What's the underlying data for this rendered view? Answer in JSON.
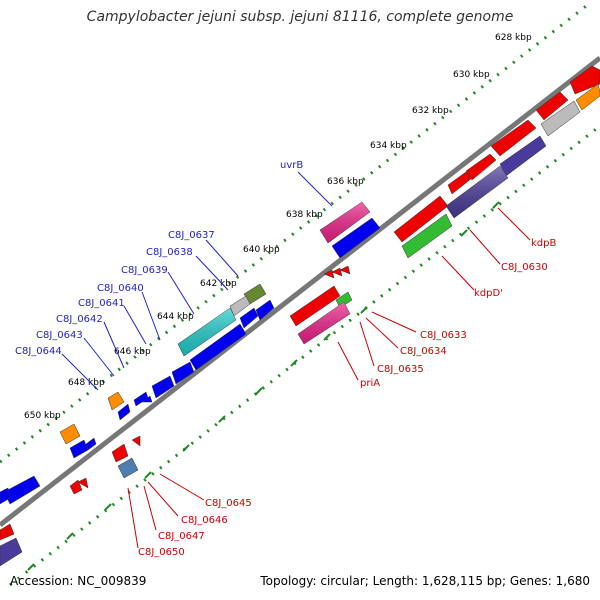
{
  "title": "Campylobacter jejuni subsp. jejuni 81116, complete genome",
  "ticks": [
    "628 kbp",
    "630 kbp",
    "632 kbp",
    "634 kbp",
    "636 kbp",
    "638 kbp",
    "640 kbp",
    "642 kbp",
    "644 kbp",
    "646 kbp",
    "648 kbp",
    "650 kbp"
  ],
  "forward_labels": [
    "uvrB",
    "C8J_0637",
    "C8J_0638",
    "C8J_0639",
    "C8J_0640",
    "C8J_0641",
    "C8J_0642",
    "C8J_0643",
    "C8J_0644"
  ],
  "reverse_labels": [
    "kdpB",
    "C8J_0630",
    "kdpD'",
    "C8J_0633",
    "C8J_0634",
    "C8J_0635",
    "priA",
    "C8J_0645",
    "C8J_0646",
    "C8J_0647",
    "C8J_0650"
  ],
  "footer": {
    "accession": "Accession: NC_009839",
    "topology": "Topology: circular; Length: 1,628,115 bp; Genes: 1,680"
  },
  "colors": {
    "blue_gene": "#0000ee",
    "red_gene": "#ee0000",
    "pink_gene": "#ee2288",
    "cyan_gene": "#22cccc",
    "olive_gene": "#668833",
    "navy_gene": "#4a3a9a",
    "green_gene": "#33bb33",
    "orange_gene": "#ff8c00",
    "steel_gene": "#4f7fb0",
    "gray_gene": "#bbbbbb",
    "tick_green": "#228822",
    "backbone": "#777777",
    "label_blue": "#2222cc",
    "label_red": "#cc0000"
  }
}
